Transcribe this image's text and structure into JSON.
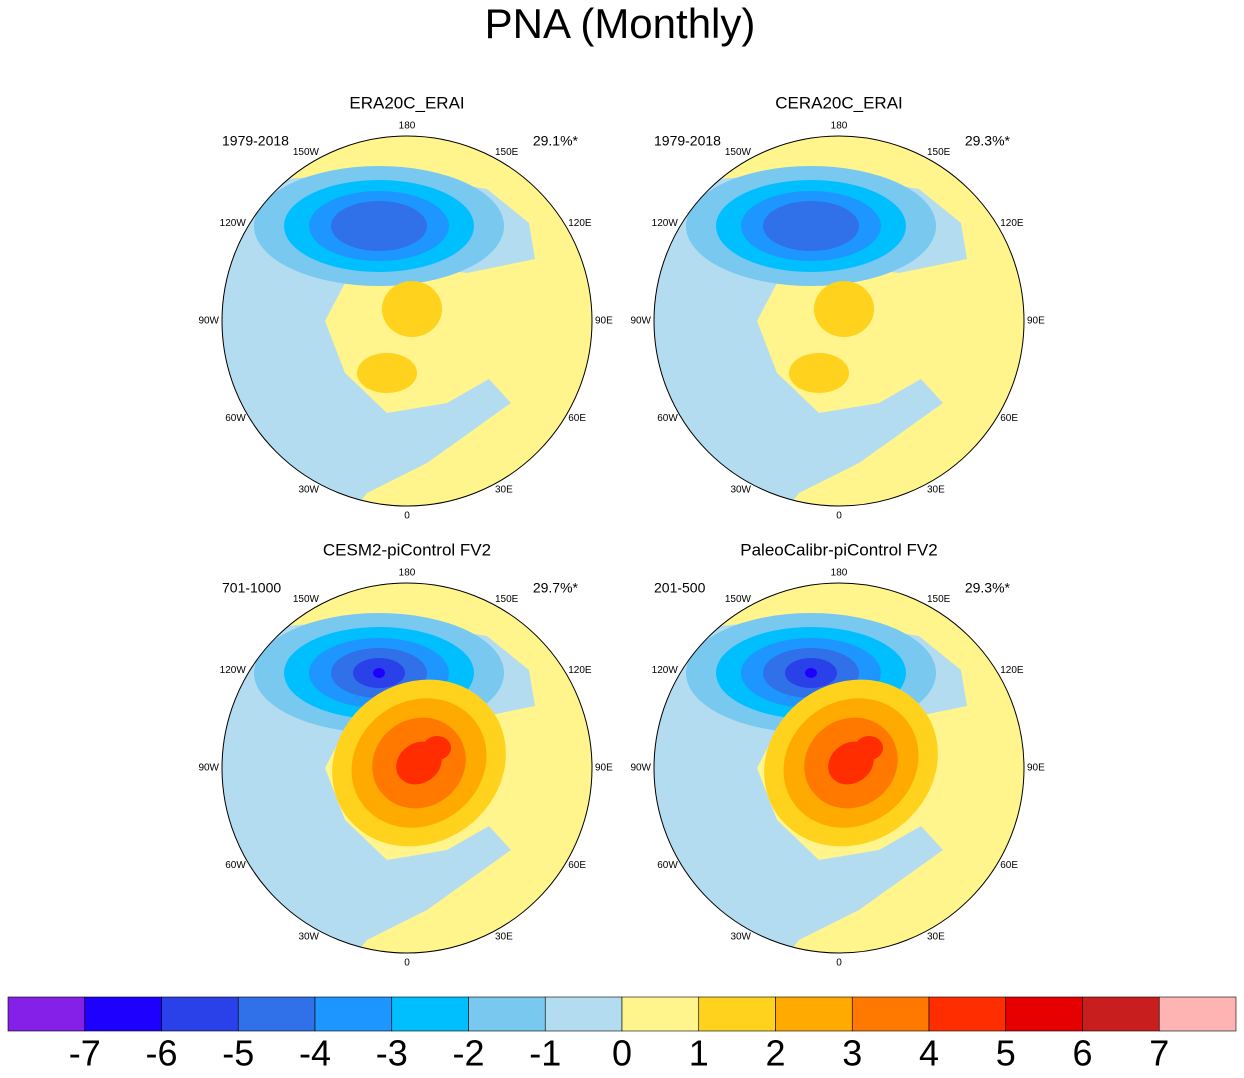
{
  "title": "PNA (Monthly)",
  "lon_labels": [
    "180",
    "150E",
    "120E",
    "90E",
    "60E",
    "30E",
    "0",
    "30W",
    "60W",
    "90W",
    "120W",
    "150W"
  ],
  "panels": [
    {
      "title": "ERA20C_ERAI",
      "period": "1979-2018",
      "percent": "29.1%*"
    },
    {
      "title": "CERA20C_ERAI",
      "period": "1979-2018",
      "percent": "29.3%*"
    },
    {
      "title": "CESM2-piControl FV2",
      "period": "701-1000",
      "percent": "29.7%*"
    },
    {
      "title": "PaleoCalibr-piControl FV2",
      "period": "201-500",
      "percent": "29.3%*"
    }
  ],
  "colorbar": {
    "colors": [
      "#8420e8",
      "#1e00ff",
      "#2a40e8",
      "#3070e8",
      "#1e96ff",
      "#00bfff",
      "#78c8f0",
      "#b4dcf0",
      "#fff58c",
      "#ffd21e",
      "#ffaa00",
      "#ff7800",
      "#ff2d00",
      "#e60000",
      "#c81e1e",
      "#ffb4b4"
    ],
    "labels": [
      -7,
      -6,
      -5,
      -4,
      -3,
      -2,
      -1,
      0,
      1,
      2,
      3,
      4,
      5,
      6,
      7
    ]
  }
}
